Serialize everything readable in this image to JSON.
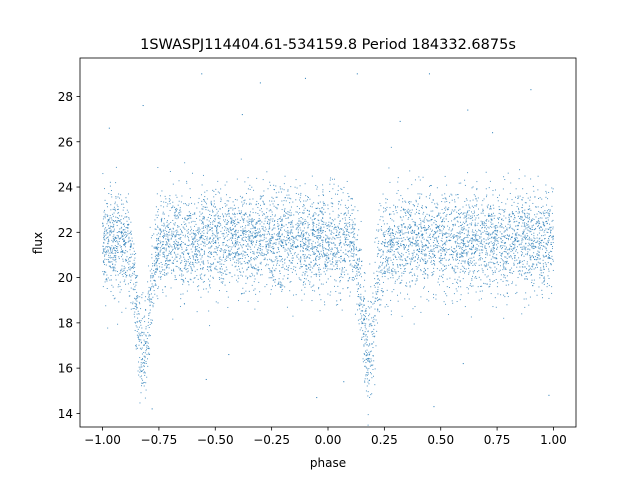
{
  "chart_data": {
    "type": "scatter",
    "title": "1SWASPJ114404.61-534159.8 Period 184332.6875s",
    "xlabel": "phase",
    "ylabel": "flux",
    "xlim": [
      -1.1,
      1.1
    ],
    "ylim": [
      13.4,
      29.7
    ],
    "xticks": [
      -1.0,
      -0.75,
      -0.5,
      -0.25,
      0.0,
      0.25,
      0.5,
      0.75,
      1.0
    ],
    "xtick_labels": [
      "−1.00",
      "−0.75",
      "−0.50",
      "−0.25",
      "0.00",
      "0.25",
      "0.50",
      "0.75",
      "1.00"
    ],
    "yticks": [
      14,
      16,
      18,
      20,
      22,
      24,
      26,
      28
    ],
    "ytick_labels": [
      "14",
      "16",
      "18",
      "20",
      "22",
      "24",
      "26",
      "28"
    ],
    "grid": false,
    "color": "#1f77b4",
    "light_curve": {
      "baseline_flux": 21.6,
      "scatter": 1.1,
      "phase_range": [
        -1.0,
        1.0
      ],
      "eclipses": [
        {
          "phase": -0.82,
          "min_flux": 16.6,
          "half_width": 0.06
        },
        {
          "phase": 0.18,
          "min_flux": 16.6,
          "half_width": 0.06
        }
      ],
      "outliers": [
        [
          -0.56,
          29.0
        ],
        [
          0.13,
          29.0
        ],
        [
          0.45,
          29.0
        ],
        [
          -0.1,
          28.8
        ],
        [
          -0.3,
          28.6
        ],
        [
          0.9,
          28.3
        ],
        [
          -0.82,
          27.6
        ],
        [
          0.62,
          27.4
        ],
        [
          -0.38,
          27.2
        ],
        [
          0.32,
          26.9
        ],
        [
          0.73,
          26.4
        ],
        [
          -0.97,
          26.6
        ],
        [
          0.07,
          15.4
        ],
        [
          -0.54,
          15.5
        ],
        [
          -0.05,
          14.7
        ],
        [
          0.47,
          14.3
        ],
        [
          -0.78,
          14.2
        ],
        [
          0.98,
          14.8
        ],
        [
          -0.44,
          16.6
        ],
        [
          0.6,
          16.2
        ]
      ]
    }
  }
}
